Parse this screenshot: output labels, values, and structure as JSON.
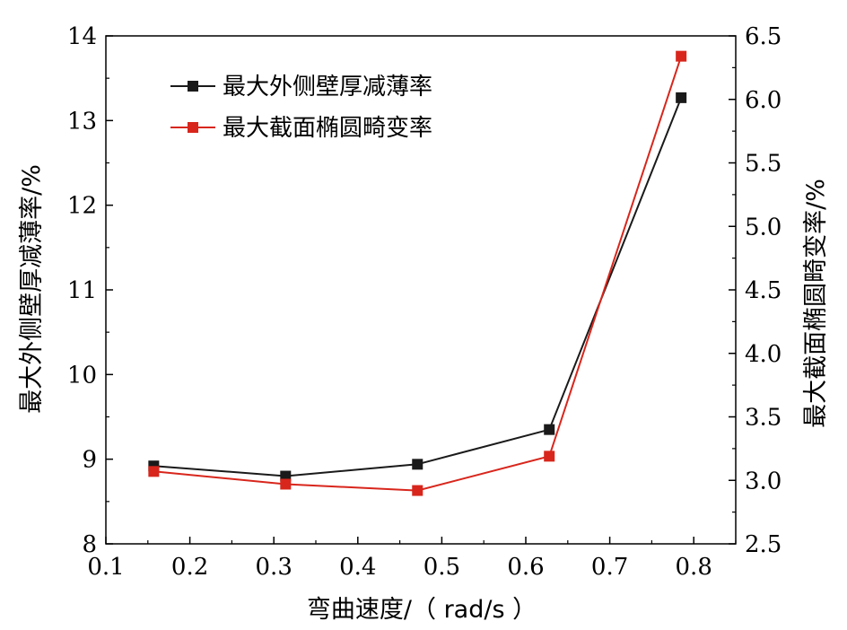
{
  "chart_data": {
    "type": "line",
    "x": [
      0.157,
      0.314,
      0.471,
      0.628,
      0.785
    ],
    "xlabel": "弯曲速度/（ rad/s ）",
    "xlim": [
      0.1,
      0.85
    ],
    "xticks": [
      "0.1",
      "0.2",
      "0.3",
      "0.4",
      "0.5",
      "0.6",
      "0.7",
      "0.8"
    ],
    "y_left": {
      "label": "最大外侧壁厚减薄率/%",
      "lim": [
        8,
        14
      ],
      "ticks": [
        "8",
        "9",
        "10",
        "11",
        "12",
        "13",
        "14"
      ]
    },
    "y_right": {
      "label": "最大截面椭圆畸变率/%",
      "lim": [
        2.5,
        6.5
      ],
      "ticks": [
        "2.5",
        "3.0",
        "3.5",
        "4.0",
        "4.5",
        "5.0",
        "5.5",
        "6.0",
        "6.5"
      ]
    },
    "series": [
      {
        "name": "最大外侧壁厚减薄率",
        "axis": "left",
        "color": "#1a1a1a",
        "values": [
          8.92,
          8.8,
          8.94,
          9.35,
          13.27
        ]
      },
      {
        "name": "最大截面椭圆畸变率",
        "axis": "right",
        "color": "#d8261c",
        "values": [
          3.07,
          2.97,
          2.92,
          3.19,
          6.34
        ]
      }
    ],
    "legend_position": "top-left"
  }
}
